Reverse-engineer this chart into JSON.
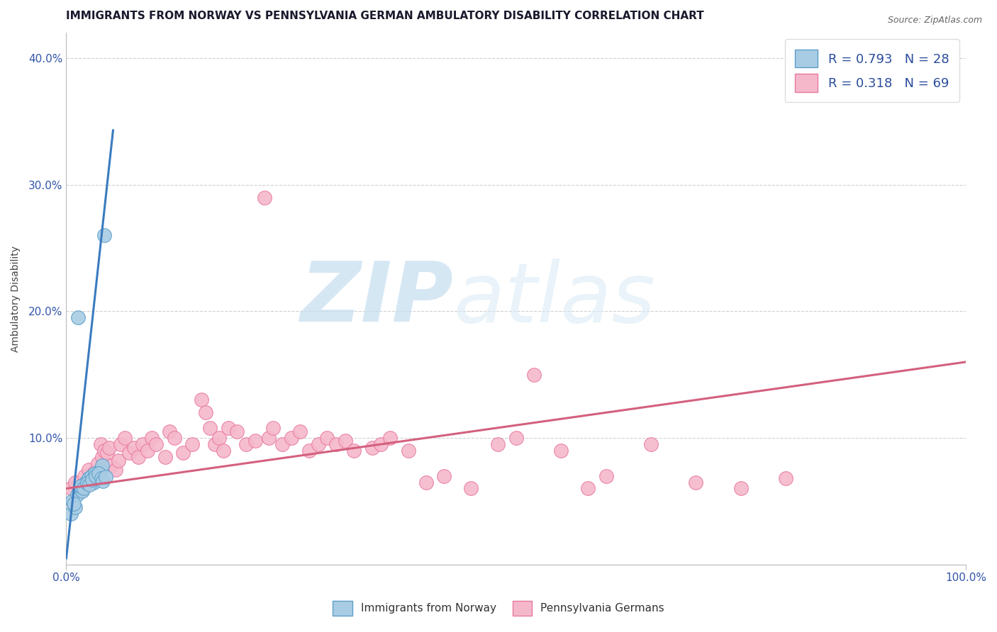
{
  "title": "IMMIGRANTS FROM NORWAY VS PENNSYLVANIA GERMAN AMBULATORY DISABILITY CORRELATION CHART",
  "source_text": "Source: ZipAtlas.com",
  "ylabel": "Ambulatory Disability",
  "xlim": [
    0.0,
    1.0
  ],
  "ylim": [
    0.0,
    0.42
  ],
  "x_tick_labels": [
    "0.0%",
    "100.0%"
  ],
  "x_tick_pos": [
    0.0,
    1.0
  ],
  "y_ticks": [
    0.0,
    0.1,
    0.2,
    0.3,
    0.4
  ],
  "y_tick_labels": [
    "",
    "10.0%",
    "20.0%",
    "30.0%",
    "40.0%"
  ],
  "legend1_text": "R = 0.793   N = 28",
  "legend2_text": "R = 0.318   N = 69",
  "legend_bottom1": "Immigrants from Norway",
  "legend_bottom2": "Pennsylvania Germans",
  "norway_color": "#a8cce4",
  "norway_edge": "#5b9ec9",
  "pa_color": "#f5b8cb",
  "pa_edge": "#e87aa0",
  "norway_line_color": "#3a7bbf",
  "pa_line_color": "#d4607e",
  "watermark_zip": "ZIP",
  "watermark_atlas": "atlas",
  "background_color": "#ffffff",
  "plot_bg_color": "#ffffff",
  "grid_color": "#d0d0d0",
  "title_fontsize": 11,
  "axis_label_fontsize": 10,
  "tick_fontsize": 11,
  "norway_x": [
    0.005,
    0.007,
    0.01,
    0.012,
    0.015,
    0.018,
    0.02,
    0.022,
    0.025,
    0.028,
    0.03,
    0.032,
    0.035,
    0.038,
    0.04,
    0.042,
    0.008,
    0.013,
    0.016,
    0.019,
    0.023,
    0.026,
    0.029,
    0.033,
    0.036,
    0.039,
    0.041,
    0.044
  ],
  "norway_y": [
    0.04,
    0.05,
    0.045,
    0.055,
    0.06,
    0.058,
    0.062,
    0.065,
    0.068,
    0.07,
    0.065,
    0.072,
    0.07,
    0.075,
    0.078,
    0.26,
    0.048,
    0.195,
    0.062,
    0.06,
    0.064,
    0.063,
    0.067,
    0.07,
    0.072,
    0.068,
    0.066,
    0.069
  ],
  "pa_x": [
    0.005,
    0.01,
    0.015,
    0.02,
    0.025,
    0.028,
    0.03,
    0.035,
    0.038,
    0.04,
    0.042,
    0.045,
    0.048,
    0.05,
    0.055,
    0.058,
    0.06,
    0.065,
    0.07,
    0.075,
    0.08,
    0.085,
    0.09,
    0.095,
    0.1,
    0.11,
    0.115,
    0.12,
    0.13,
    0.14,
    0.15,
    0.155,
    0.16,
    0.165,
    0.17,
    0.175,
    0.18,
    0.19,
    0.2,
    0.21,
    0.22,
    0.225,
    0.23,
    0.24,
    0.25,
    0.26,
    0.27,
    0.28,
    0.29,
    0.3,
    0.31,
    0.32,
    0.34,
    0.35,
    0.36,
    0.38,
    0.4,
    0.42,
    0.45,
    0.48,
    0.5,
    0.52,
    0.55,
    0.58,
    0.6,
    0.65,
    0.7,
    0.75,
    0.8
  ],
  "pa_y": [
    0.06,
    0.065,
    0.058,
    0.07,
    0.075,
    0.068,
    0.072,
    0.08,
    0.095,
    0.085,
    0.09,
    0.088,
    0.092,
    0.078,
    0.075,
    0.082,
    0.095,
    0.1,
    0.088,
    0.092,
    0.085,
    0.095,
    0.09,
    0.1,
    0.095,
    0.085,
    0.105,
    0.1,
    0.088,
    0.095,
    0.13,
    0.12,
    0.108,
    0.095,
    0.1,
    0.09,
    0.108,
    0.105,
    0.095,
    0.098,
    0.29,
    0.1,
    0.108,
    0.095,
    0.1,
    0.105,
    0.09,
    0.095,
    0.1,
    0.095,
    0.098,
    0.09,
    0.092,
    0.095,
    0.1,
    0.09,
    0.065,
    0.07,
    0.06,
    0.095,
    0.1,
    0.15,
    0.09,
    0.06,
    0.07,
    0.095,
    0.065,
    0.06,
    0.068
  ],
  "norway_line_x": [
    0.0,
    0.045
  ],
  "norway_line_y_intercept": 0.005,
  "norway_line_slope": 6.5,
  "pa_line_x": [
    0.0,
    1.0
  ],
  "pa_line_y_intercept": 0.06,
  "pa_line_slope": 0.1
}
